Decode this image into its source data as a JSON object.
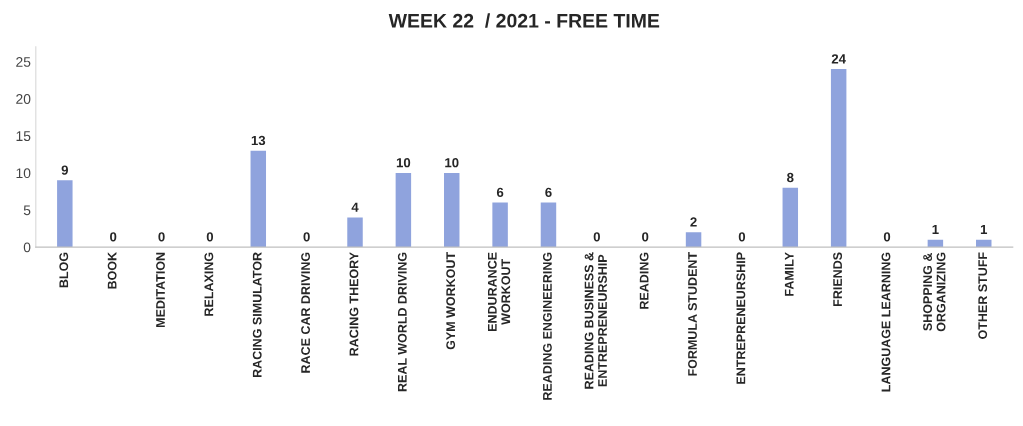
{
  "chart_data": {
    "type": "bar",
    "title": "WEEK 22  / 2021 - FREE TIME",
    "categories": [
      "BLOG",
      "BOOK",
      "MEDITATION",
      "RELAXING",
      "RACING SIMULATOR",
      "RACE CAR DRIVING",
      "RACING THEORY",
      "REAL WORLD DRIVING",
      "GYM WORKOUT",
      "ENDURANCE\nWORKOUT",
      "READING ENGINEERING",
      "READING BUSINESS &\nENTREPRENEURSHIP",
      "READING",
      "FORMULA STUDENT",
      "ENTREPRENEURSHIP",
      "FAMILY",
      "FRIENDS",
      "LANGUAGE LEARNING",
      "SHOPPING &\nORGANIZING",
      "OTHER STUFF"
    ],
    "values": [
      9,
      0,
      0,
      0,
      13,
      0,
      4,
      10,
      10,
      6,
      6,
      0,
      0,
      2,
      0,
      8,
      24,
      0,
      1,
      1
    ],
    "color": "#8fa3dd",
    "ylim": [
      0,
      27
    ],
    "yticks": [
      0,
      5,
      10,
      15,
      20,
      25
    ],
    "data_labels": true,
    "grid": false
  }
}
